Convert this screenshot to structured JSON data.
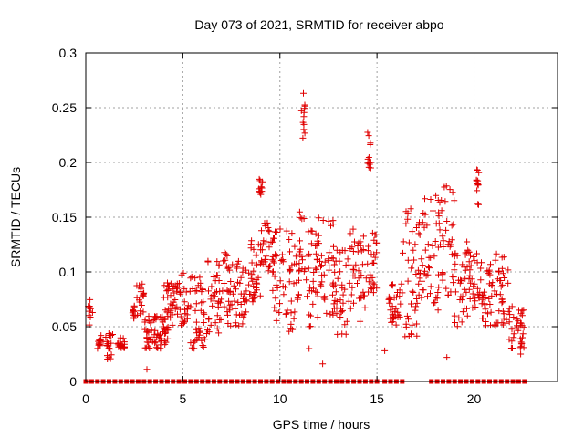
{
  "chart_data": {
    "type": "scatter",
    "title": "Day 073 of 2021, SRMTID for receiver abpo",
    "xlabel": "GPS time / hours",
    "ylabel": "SRMTID / TECUs",
    "xlim": [
      0,
      24.3
    ],
    "ylim": [
      0,
      0.3
    ],
    "xticks": [
      0,
      5,
      10,
      15,
      20
    ],
    "xtick_labels": [
      "0",
      "5",
      "10",
      "15",
      "20"
    ],
    "yticks": [
      0,
      0.05,
      0.1,
      0.15,
      0.2,
      0.25,
      0.3
    ],
    "ytick_labels": [
      "0",
      "0.05",
      "0.1",
      "0.15",
      "0.2",
      "0.25",
      "0.3"
    ],
    "grid": true,
    "marker": "plus",
    "color": "#e00000",
    "baseline_marker": "square",
    "clusters": [
      {
        "x": [
          0.1,
          0.35
        ],
        "y": [
          0.05,
          0.075
        ]
      },
      {
        "x": [
          0.6,
          0.9
        ],
        "y": [
          0.03,
          0.045
        ]
      },
      {
        "x": [
          1.0,
          1.4
        ],
        "y": [
          0.02,
          0.045
        ]
      },
      {
        "x": [
          1.6,
          2.0
        ],
        "y": [
          0.03,
          0.04
        ]
      },
      {
        "x": [
          2.4,
          2.6
        ],
        "y": [
          0.055,
          0.07
        ]
      },
      {
        "x": [
          2.6,
          3.0
        ],
        "y": [
          0.06,
          0.09
        ]
      },
      {
        "x": [
          3.0,
          3.6
        ],
        "y": [
          0.03,
          0.06
        ]
      },
      {
        "x": [
          3.6,
          4.3
        ],
        "y": [
          0.03,
          0.06
        ]
      },
      {
        "x": [
          4.0,
          4.8
        ],
        "y": [
          0.05,
          0.09
        ]
      },
      {
        "x": [
          4.8,
          5.3
        ],
        "y": [
          0.05,
          0.1
        ]
      },
      {
        "x": [
          5.3,
          6.2
        ],
        "y": [
          0.03,
          0.1
        ]
      },
      {
        "x": [
          6.2,
          7.0
        ],
        "y": [
          0.04,
          0.11
        ]
      },
      {
        "x": [
          7.0,
          7.6
        ],
        "y": [
          0.05,
          0.12
        ]
      },
      {
        "x": [
          7.6,
          8.3
        ],
        "y": [
          0.05,
          0.11
        ]
      },
      {
        "x": [
          8.3,
          9.0
        ],
        "y": [
          0.07,
          0.13
        ]
      },
      {
        "x": [
          8.9,
          9.1
        ],
        "y": [
          0.17,
          0.185
        ]
      },
      {
        "x": [
          9.0,
          9.6
        ],
        "y": [
          0.1,
          0.15
        ]
      },
      {
        "x": [
          9.6,
          10.3
        ],
        "y": [
          0.05,
          0.14
        ]
      },
      {
        "x": [
          10.3,
          11.0
        ],
        "y": [
          0.04,
          0.14
        ]
      },
      {
        "x": [
          11.0,
          11.3
        ],
        "y": [
          0.1,
          0.16
        ]
      },
      {
        "x": [
          11.1,
          11.3
        ],
        "y": [
          0.22,
          0.27
        ]
      },
      {
        "x": [
          11.3,
          12.0
        ],
        "y": [
          0.05,
          0.14
        ]
      },
      {
        "x": [
          12.0,
          12.8
        ],
        "y": [
          0.06,
          0.15
        ]
      },
      {
        "x": [
          12.8,
          13.6
        ],
        "y": [
          0.04,
          0.12
        ]
      },
      {
        "x": [
          13.6,
          14.4
        ],
        "y": [
          0.05,
          0.14
        ]
      },
      {
        "x": [
          14.4,
          15.0
        ],
        "y": [
          0.08,
          0.14
        ]
      },
      {
        "x": [
          14.5,
          14.7
        ],
        "y": [
          0.19,
          0.23
        ]
      },
      {
        "x": [
          15.6,
          16.3
        ],
        "y": [
          0.05,
          0.09
        ]
      },
      {
        "x": [
          16.3,
          17.2
        ],
        "y": [
          0.04,
          0.16
        ]
      },
      {
        "x": [
          17.2,
          18.2
        ],
        "y": [
          0.06,
          0.17
        ]
      },
      {
        "x": [
          18.2,
          19.0
        ],
        "y": [
          0.07,
          0.18
        ]
      },
      {
        "x": [
          19.0,
          19.7
        ],
        "y": [
          0.05,
          0.13
        ]
      },
      {
        "x": [
          19.7,
          20.3
        ],
        "y": [
          0.06,
          0.12
        ]
      },
      {
        "x": [
          20.1,
          20.3
        ],
        "y": [
          0.16,
          0.195
        ]
      },
      {
        "x": [
          20.3,
          21.0
        ],
        "y": [
          0.05,
          0.11
        ]
      },
      {
        "x": [
          21.0,
          21.8
        ],
        "y": [
          0.05,
          0.12
        ]
      },
      {
        "x": [
          21.8,
          22.6
        ],
        "y": [
          0.03,
          0.07
        ]
      }
    ],
    "outliers": [
      {
        "x": 3.15,
        "y": 0.011
      },
      {
        "x": 12.2,
        "y": 0.016
      },
      {
        "x": 15.4,
        "y": 0.028
      },
      {
        "x": 11.5,
        "y": 0.03
      },
      {
        "x": 18.6,
        "y": 0.022
      },
      {
        "x": 22.4,
        "y": 0.025
      }
    ],
    "baseline_ranges": [
      [
        0.0,
        15.2
      ],
      [
        15.4,
        16.4
      ],
      [
        17.8,
        22.6
      ]
    ]
  }
}
